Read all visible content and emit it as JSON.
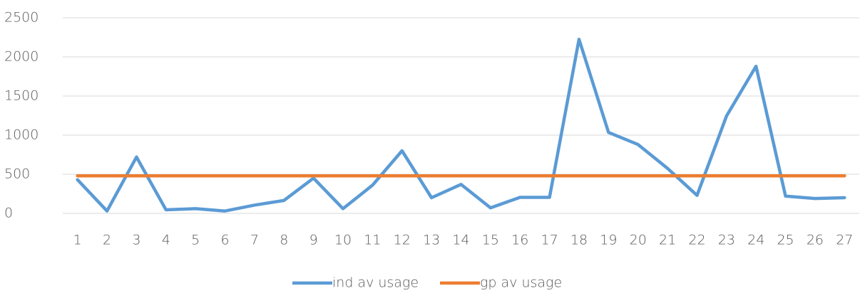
{
  "chart_data": {
    "type": "line",
    "categories": [
      1,
      2,
      3,
      4,
      5,
      6,
      7,
      8,
      9,
      10,
      11,
      12,
      13,
      14,
      15,
      16,
      17,
      18,
      19,
      20,
      21,
      22,
      23,
      24,
      25,
      26,
      27
    ],
    "series": [
      {
        "name": "ind av usage",
        "color": "#5b9bd5",
        "values": [
          430,
          30,
          720,
          45,
          60,
          30,
          105,
          165,
          450,
          60,
          360,
          800,
          200,
          370,
          70,
          205,
          205,
          2225,
          1035,
          880,
          575,
          230,
          1245,
          1880,
          220,
          190,
          200
        ]
      },
      {
        "name": "gp av usage",
        "color": "#ed7d31",
        "values": [
          480,
          480,
          480,
          480,
          480,
          480,
          480,
          480,
          480,
          480,
          480,
          480,
          480,
          480,
          480,
          480,
          480,
          480,
          480,
          480,
          480,
          480,
          480,
          480,
          480,
          480,
          480
        ]
      }
    ],
    "ylim": [
      0,
      2500
    ],
    "yticks": [
      0,
      500,
      1000,
      1500,
      2000,
      2500
    ],
    "grid": true,
    "legend": "bottom"
  }
}
